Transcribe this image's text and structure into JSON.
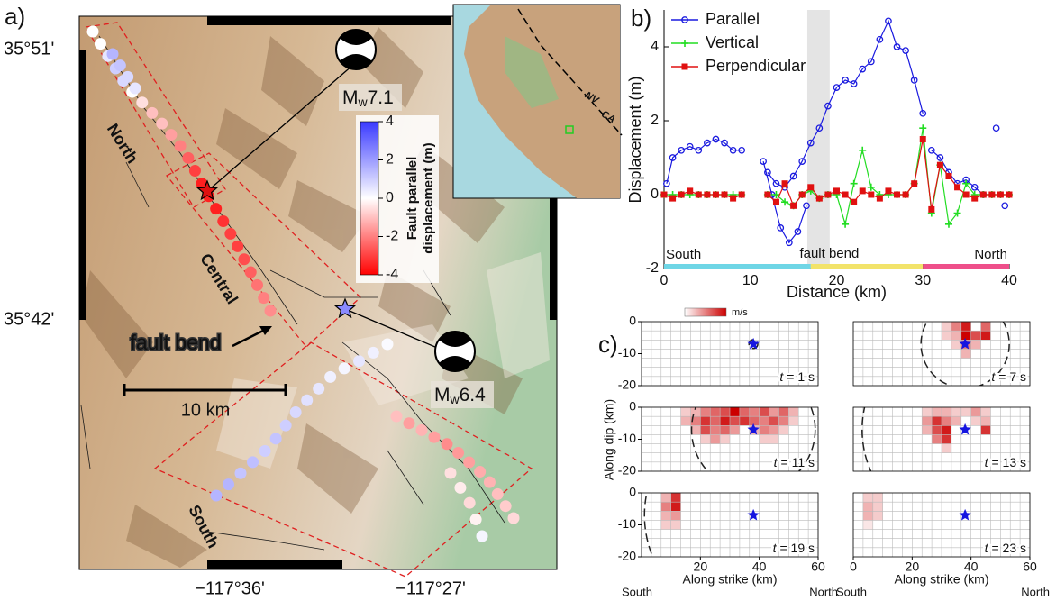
{
  "panel_a": {
    "label": "a)",
    "lat_ticks": [
      "35°51'",
      "35°42'"
    ],
    "lon_ticks": [
      "−117°36'",
      "−117°27'"
    ],
    "segment_labels": [
      "North",
      "Central",
      "South"
    ],
    "fault_bend": "fault bend",
    "scale_bar": "10 km",
    "events": [
      {
        "symbol": "M",
        "subscript": "w",
        "magnitude": "7.1"
      },
      {
        "symbol": "M",
        "subscript": "w",
        "magnitude": "6.4"
      }
    ],
    "inset_labels": [
      "NV",
      "CA"
    ],
    "colorbar": {
      "title": [
        "Fault parallel",
        "displacement (m)"
      ],
      "lim": [
        -4,
        4
      ],
      "ticks": [
        -4,
        -2,
        0,
        2,
        4
      ],
      "colors": [
        "#ff0000",
        "#ffffff",
        "#3a3aff"
      ]
    },
    "traces": [
      {
        "values": [
          0,
          0,
          0.5,
          1,
          0.8,
          0,
          -0.5,
          -1,
          -1,
          -1.5,
          -2,
          -2.5,
          -3,
          -3.5,
          -3.5,
          -3.5,
          -3.2,
          -3,
          -3,
          -2.8,
          -2.5,
          -2.2,
          -2,
          -1.8
        ]
      },
      {
        "values": [
          1.5,
          1.2,
          0.8,
          0.5
        ]
      },
      {
        "values": [
          1.5,
          1.5,
          1.2,
          1.3,
          1.0,
          1.2,
          1.0,
          0.8,
          0.6,
          0.5,
          0.3,
          0.2,
          0.5,
          0.3,
          0.1
        ]
      },
      {
        "values": [
          -1,
          -1.5,
          -1.2,
          -1.5,
          -1.8,
          -1.6,
          -1.5,
          -1.3,
          -1.2,
          -1,
          -0.8,
          -0.6
        ]
      },
      {
        "values": [
          -0.5,
          -0.3,
          -0.6,
          -0.2,
          0.2
        ]
      }
    ]
  },
  "panel_c": {
    "label": "c)",
    "ylabel": "Along dip (km)",
    "xlabel": "Along strike (km)",
    "ends": [
      "South",
      "North"
    ],
    "colorbar_unit": "m/s",
    "colors": [
      "#ffffff",
      "#cc0000"
    ],
    "clim": [
      0,
      1
    ]
  },
  "chart_data": [
    {
      "type": "line",
      "panel_label": "b)",
      "xlabel": "Distance (km)",
      "ylabel": "Displacement (m)",
      "xlim": [
        0,
        40
      ],
      "ylim": [
        -2,
        5
      ],
      "xticks": [
        0,
        10,
        20,
        30,
        40
      ],
      "yticks": [
        -2,
        0,
        2,
        4
      ],
      "legend": "upper left",
      "annotation": {
        "text": "fault bend",
        "x_range": [
          16.6,
          19.2
        ]
      },
      "strike_bar": {
        "ranges": [
          [
            0,
            17
          ],
          [
            17,
            30
          ],
          [
            30,
            40
          ]
        ],
        "colors": [
          "#6fd6e6",
          "#f2e36a",
          "#ee4f8a"
        ],
        "labels": [
          "South",
          null,
          "North"
        ]
      },
      "series": [
        {
          "name": "Parallel",
          "color": "#1a1adf",
          "marker": "circle",
          "x": [
            0.3,
            1,
            2,
            3,
            4,
            5,
            6,
            7,
            8,
            9,
            10,
            11.5,
            12.5,
            13.5,
            14.5,
            15.5,
            16.5,
            17,
            12,
            13,
            14,
            15,
            16,
            17,
            18,
            19,
            20,
            21,
            22,
            23,
            24,
            25,
            26,
            27,
            28,
            29,
            30,
            30.5,
            31,
            32,
            33,
            34,
            35,
            36,
            37,
            38,
            38.5,
            39,
            39.5
          ],
          "values": [
            0.3,
            1.0,
            1.2,
            1.3,
            1.2,
            1.4,
            1.5,
            1.4,
            1.2,
            1.2,
            null,
            0.9,
            0.0,
            -0.9,
            -1.3,
            -1.0,
            -0.3,
            null,
            0.6,
            0.3,
            0.2,
            0.5,
            0.9,
            1.4,
            1.8,
            2.4,
            2.9,
            3.1,
            3.0,
            3.4,
            3.6,
            4.2,
            4.7,
            4.0,
            3.9,
            3.1,
            2.2,
            null,
            1.2,
            1.0,
            0.6,
            0.3,
            0.4,
            0.2,
            0.0,
            null,
            1.8,
            null,
            -0.3
          ]
        },
        {
          "name": "Vertical",
          "color": "#22dd22",
          "marker": "plus",
          "x": [
            0,
            1,
            2,
            3,
            4,
            5,
            6,
            7,
            8,
            9,
            10,
            11,
            12,
            13,
            14,
            15,
            16,
            17,
            18,
            19,
            20,
            21,
            22,
            23,
            24,
            25,
            26,
            27,
            28,
            29,
            30,
            31,
            32,
            33,
            34,
            35,
            36,
            37,
            38,
            39,
            40
          ],
          "values": [
            0,
            0,
            0,
            0,
            0,
            0,
            0,
            0,
            0,
            0,
            null,
            null,
            0,
            0,
            -0.2,
            -0.3,
            0,
            0.1,
            -0.1,
            0,
            0,
            -0.8,
            0.3,
            1.2,
            0.2,
            0,
            0,
            0,
            0,
            0.3,
            1.8,
            -0.5,
            0.8,
            -0.8,
            -0.5,
            0.3,
            0,
            0,
            0,
            0,
            0
          ]
        },
        {
          "name": "Perpendicular",
          "color": "#e01010",
          "marker": "square",
          "x": [
            0,
            1,
            2,
            3,
            4,
            5,
            6,
            7,
            8,
            9,
            10,
            11,
            12,
            13,
            14,
            15,
            16,
            17,
            18,
            19,
            20,
            21,
            22,
            23,
            24,
            25,
            26,
            27,
            28,
            29,
            30,
            31,
            32,
            33,
            34,
            35,
            36,
            37,
            38,
            39,
            40
          ],
          "values": [
            0,
            -0.1,
            0,
            0.1,
            0,
            0,
            0,
            0,
            -0.1,
            0,
            null,
            null,
            0,
            -0.2,
            0.3,
            -0.3,
            0,
            0.2,
            -0.1,
            0,
            0.1,
            0,
            -0.2,
            0.1,
            0,
            -0.1,
            0.1,
            0,
            0,
            0.3,
            1.5,
            -0.4,
            0.8,
            0.5,
            0.2,
            0,
            -0.1,
            0,
            0,
            0,
            0
          ]
        }
      ]
    },
    {
      "type": "heatmap",
      "time": [
        "t",
        "= 1 s"
      ],
      "xlim": [
        0,
        60
      ],
      "ylim": [
        -20,
        0
      ],
      "yticks": [
        -20,
        -10,
        0
      ],
      "hypocenter": [
        38,
        -7
      ],
      "front_radius": 1.5,
      "cell_col": [],
      "cell_row": [],
      "values": []
    },
    {
      "type": "heatmap",
      "time": [
        "t",
        "= 7 s"
      ],
      "xlim": [
        0,
        60
      ],
      "ylim": [
        -20,
        0
      ],
      "hypocenter": [
        38,
        -7
      ],
      "front_radius": 15,
      "cell_col": [
        9,
        10,
        11,
        13,
        9,
        10,
        11,
        12,
        13,
        10,
        11,
        12,
        11
      ],
      "cell_row": [
        0,
        0,
        0,
        0,
        1,
        1,
        1,
        1,
        1,
        2,
        2,
        2,
        3
      ],
      "values": [
        0.2,
        0.5,
        0.9,
        0.6,
        0.2,
        0.3,
        1.0,
        0.7,
        0.9,
        0.2,
        0.5,
        0.3,
        0.3
      ]
    },
    {
      "type": "heatmap",
      "time": [
        "t",
        "= 11 s"
      ],
      "xlim": [
        0,
        60
      ],
      "ylim": [
        -20,
        0
      ],
      "yticks": [
        -20,
        -10,
        0
      ],
      "hypocenter": [
        38,
        -7
      ],
      "front_radius": 21,
      "cell_col": [
        4,
        5,
        6,
        7,
        8,
        9,
        10,
        11,
        12,
        13,
        14,
        15,
        4,
        5,
        6,
        7,
        8,
        9,
        10,
        11,
        12,
        13,
        14,
        15,
        5,
        6,
        7,
        8,
        9,
        11,
        12,
        13,
        14,
        6,
        7,
        8,
        12,
        13
      ],
      "cell_row": [
        0,
        0,
        0,
        0,
        0,
        0,
        0,
        0,
        0,
        0,
        0,
        0,
        1,
        1,
        1,
        1,
        1,
        1,
        1,
        1,
        1,
        1,
        1,
        1,
        2,
        2,
        2,
        2,
        2,
        2,
        2,
        2,
        2,
        3,
        3,
        3,
        3,
        3
      ],
      "values": [
        0.2,
        0.3,
        0.5,
        0.6,
        0.7,
        1.0,
        0.6,
        0.5,
        0.7,
        0.4,
        0.6,
        0.3,
        0.3,
        0.5,
        0.8,
        0.6,
        0.9,
        0.7,
        0.8,
        0.6,
        0.5,
        0.7,
        0.5,
        0.2,
        0.3,
        0.7,
        0.5,
        0.6,
        0.4,
        0.3,
        0.5,
        0.4,
        0.2,
        0.2,
        0.4,
        0.2,
        0.2,
        0.2
      ]
    },
    {
      "type": "heatmap",
      "time": [
        "t",
        "= 13 s"
      ],
      "xlim": [
        0,
        60
      ],
      "ylim": [
        -20,
        0
      ],
      "hypocenter": [
        38,
        -7
      ],
      "front_radius": 35,
      "cell_col": [
        7,
        8,
        9,
        10,
        11,
        12,
        13,
        7,
        8,
        9,
        10,
        12,
        13,
        7,
        8,
        9,
        13,
        8,
        9,
        9
      ],
      "cell_row": [
        0,
        0,
        0,
        0,
        0,
        0,
        0,
        1,
        1,
        1,
        1,
        1,
        1,
        2,
        2,
        2,
        2,
        3,
        3,
        4
      ],
      "values": [
        0.2,
        0.3,
        0.3,
        0.2,
        0.2,
        0.4,
        0.2,
        0.4,
        0.8,
        0.5,
        0.3,
        0.2,
        0.3,
        0.3,
        0.7,
        0.9,
        0.8,
        0.5,
        0.8,
        0.2
      ]
    },
    {
      "type": "heatmap",
      "time": [
        "t",
        "= 19 s"
      ],
      "xlim": [
        0,
        60
      ],
      "ylim": [
        -20,
        0
      ],
      "xticks": [
        20,
        40,
        60
      ],
      "yticks": [
        -20,
        -10,
        0
      ],
      "hypocenter": [
        38,
        -7
      ],
      "front_radius": 37,
      "cell_col": [
        2,
        3,
        2,
        3,
        2,
        3,
        2,
        3
      ],
      "cell_row": [
        0,
        0,
        1,
        1,
        2,
        2,
        3,
        3
      ],
      "values": [
        0.3,
        0.8,
        0.5,
        0.9,
        0.3,
        0.4,
        0.2,
        0.2
      ]
    },
    {
      "type": "heatmap",
      "time": [
        "t",
        "= 23 s"
      ],
      "xlim": [
        0,
        60
      ],
      "ylim": [
        -20,
        0
      ],
      "xticks": [
        0,
        20,
        40,
        60
      ],
      "hypocenter": [
        38,
        -7
      ],
      "front_radius": null,
      "cell_col": [
        1,
        2,
        1,
        2,
        1,
        2,
        1
      ],
      "cell_row": [
        0,
        0,
        1,
        1,
        2,
        2,
        3
      ],
      "values": [
        0.2,
        0.2,
        0.3,
        0.2,
        0.3,
        0.2,
        0.1
      ]
    }
  ]
}
